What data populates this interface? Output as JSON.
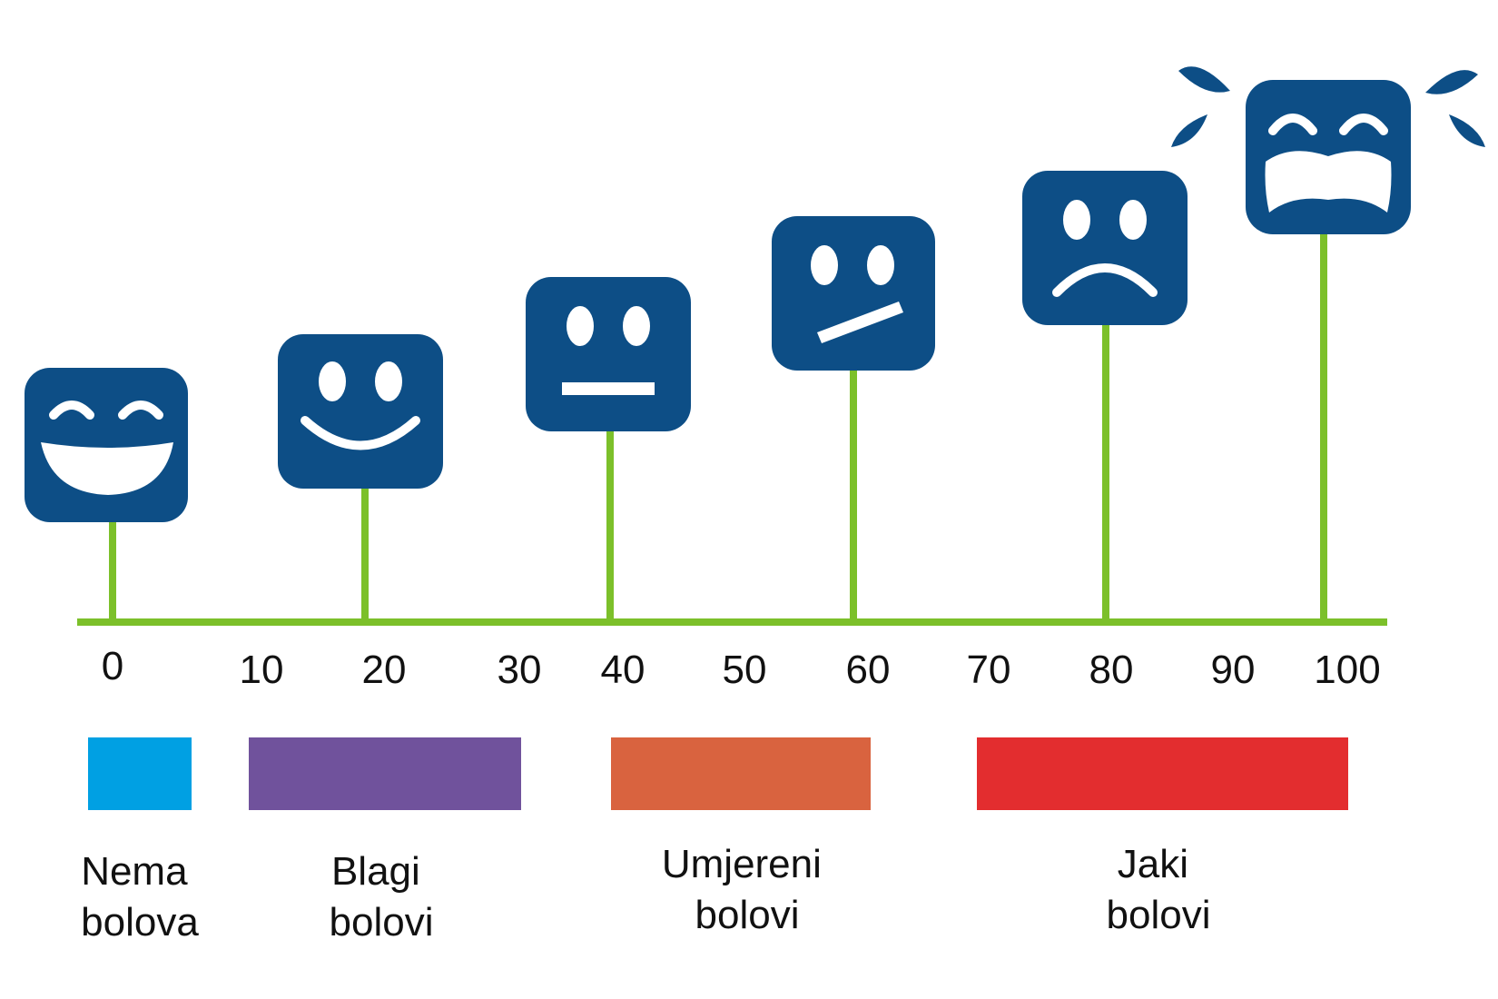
{
  "colors": {
    "face": "#0d4e86",
    "stem": "#7cc02a",
    "feature": "#ffffff"
  },
  "scale": {
    "ticks": [
      "0",
      "10",
      "20",
      "30",
      "40",
      "50",
      "60",
      "70",
      "80",
      "90",
      "100"
    ]
  },
  "faces": [
    {
      "name": "laughing-face-icon",
      "value": 0
    },
    {
      "name": "smiling-face-icon",
      "value": 20
    },
    {
      "name": "neutral-face-icon",
      "value": 40
    },
    {
      "name": "uneasy-face-icon",
      "value": 60
    },
    {
      "name": "sad-face-icon",
      "value": 80
    },
    {
      "name": "crying-face-icon",
      "value": 100
    }
  ],
  "categories": [
    {
      "line1": "Nema",
      "line2": "bolova",
      "color": "#00a0e3"
    },
    {
      "line1": "Blagi",
      "line2": "bolovi",
      "color": "#70529c"
    },
    {
      "line1": "Umjereni",
      "line2": "bolovi",
      "color": "#d9633f"
    },
    {
      "line1": "Jaki",
      "line2": "bolovi",
      "color": "#e32d2f"
    }
  ]
}
